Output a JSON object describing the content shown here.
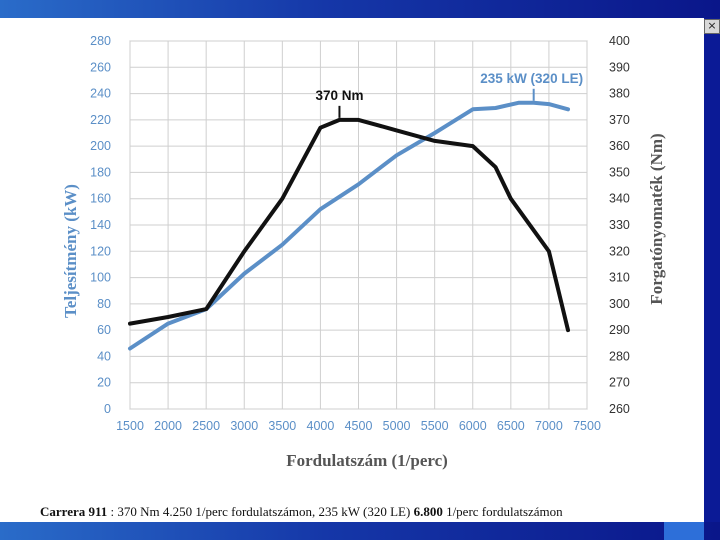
{
  "window": {
    "close_label": "×"
  },
  "chart_data": {
    "type": "line",
    "xlabel": "Fordulatszám (1/perc)",
    "ylabel_left": "Teljesítmény (kW)",
    "ylabel_right": "Forgatónyomaték (Nm)",
    "x_ticks": [
      1500,
      2000,
      2500,
      3000,
      3500,
      4000,
      4500,
      5000,
      5500,
      6000,
      6500,
      7000,
      7500
    ],
    "y_left_ticks": [
      0,
      20,
      40,
      60,
      80,
      100,
      120,
      140,
      160,
      180,
      200,
      220,
      240,
      260,
      280
    ],
    "y_right_ticks": [
      260,
      270,
      280,
      290,
      300,
      310,
      320,
      330,
      340,
      350,
      360,
      370,
      380,
      390,
      400
    ],
    "xlim": [
      1500,
      7500
    ],
    "ylim_left": [
      0,
      280
    ],
    "ylim_right": [
      260,
      400
    ],
    "series": [
      {
        "name": "235 kW (320 LE)",
        "axis": "left",
        "color": "#5b8fc7",
        "x": [
          1500,
          2000,
          2500,
          3000,
          3500,
          4000,
          4500,
          5000,
          5500,
          6000,
          6300,
          6600,
          6800,
          7000,
          7250
        ],
        "values": [
          46,
          65,
          76,
          103,
          125,
          152,
          171,
          193,
          210,
          228,
          229,
          233,
          233,
          232,
          228
        ]
      },
      {
        "name": "370 Nm",
        "axis": "right",
        "color": "#111111",
        "x": [
          1500,
          2000,
          2500,
          3000,
          3500,
          4000,
          4250,
          4500,
          5000,
          5500,
          6000,
          6300,
          6500,
          7000,
          7250
        ],
        "values": [
          292.5,
          295,
          298,
          320,
          340,
          367,
          370,
          370,
          366,
          362,
          360,
          352,
          340,
          320,
          290
        ]
      }
    ],
    "annotations": [
      {
        "text": "370 Nm",
        "x": 4250,
        "y": 370,
        "axis": "right"
      },
      {
        "text": "235 kW (320 LE)",
        "x": 6800,
        "y": 233,
        "axis": "left"
      }
    ]
  },
  "caption": {
    "model": "Carrera 911",
    "text": " : 370 Nm 4.250 1/perc fordulatszámon, 235 kW (320 LE) ",
    "rpm": "6.800",
    "tail": " 1/perc fordulatszámon"
  }
}
